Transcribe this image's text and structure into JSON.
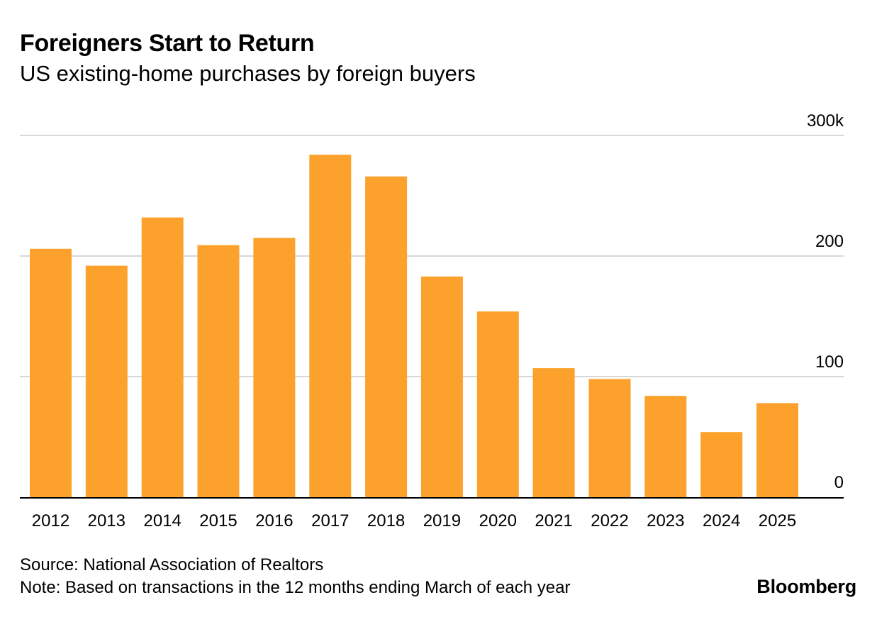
{
  "chart_data": {
    "type": "bar",
    "title": "Foreigners Start to Return",
    "subtitle": "US existing-home purchases by foreign buyers",
    "categories": [
      "2012",
      "2013",
      "2014",
      "2015",
      "2016",
      "2017",
      "2018",
      "2019",
      "2020",
      "2021",
      "2022",
      "2023",
      "2024",
      "2025"
    ],
    "values": [
      206,
      192,
      232,
      209,
      215,
      284,
      266,
      183,
      154,
      107,
      98,
      84,
      54,
      78
    ],
    "ylim": [
      0,
      300
    ],
    "yticks": [
      0,
      100,
      200,
      300
    ],
    "ytick_labels": [
      "0",
      "100",
      "200",
      "300k"
    ],
    "xlabel": "",
    "ylabel": "",
    "grid": true,
    "y_axis_side": "right",
    "bar_color": "#fca22c",
    "grid_color": "#cccccc",
    "axis_color": "#000000"
  },
  "footer": {
    "source": "Source: National Association of Realtors",
    "note": "Note: Based on transactions in the 12 months ending March of each year",
    "brand": "Bloomberg"
  }
}
